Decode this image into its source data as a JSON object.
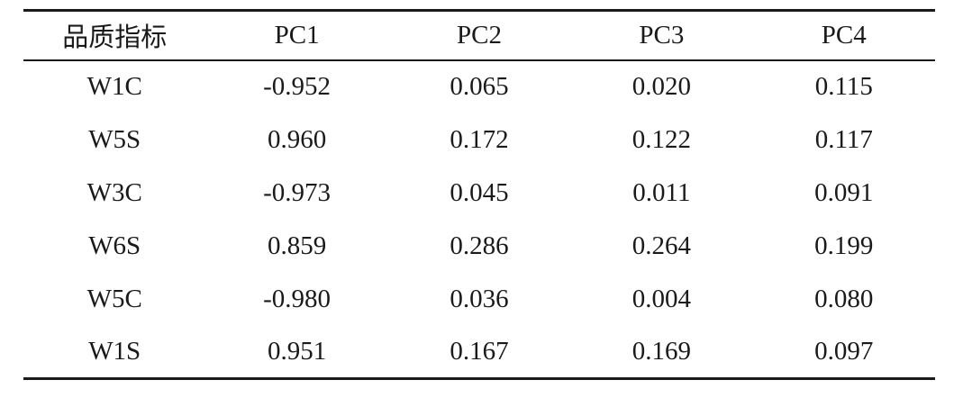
{
  "table": {
    "headers": [
      "品质指标",
      "PC1",
      "PC2",
      "PC3",
      "PC4"
    ],
    "rows": [
      {
        "label": "W1C",
        "values": [
          "-0.952",
          "0.065",
          "0.020",
          "0.115"
        ]
      },
      {
        "label": "W5S",
        "values": [
          "0.960",
          "0.172",
          "0.122",
          "0.117"
        ]
      },
      {
        "label": "W3C",
        "values": [
          "-0.973",
          "0.045",
          "0.011",
          "0.091"
        ]
      },
      {
        "label": "W6S",
        "values": [
          "0.859",
          "0.286",
          "0.264",
          "0.199"
        ]
      },
      {
        "label": "W5C",
        "values": [
          "-0.980",
          "0.036",
          "0.004",
          "0.080"
        ]
      },
      {
        "label": "W1S",
        "values": [
          "0.951",
          "0.167",
          "0.169",
          "0.097"
        ]
      }
    ]
  },
  "colors": {
    "text": "#1a1a1a",
    "rule": "#1a1a1a",
    "background": "#ffffff"
  }
}
